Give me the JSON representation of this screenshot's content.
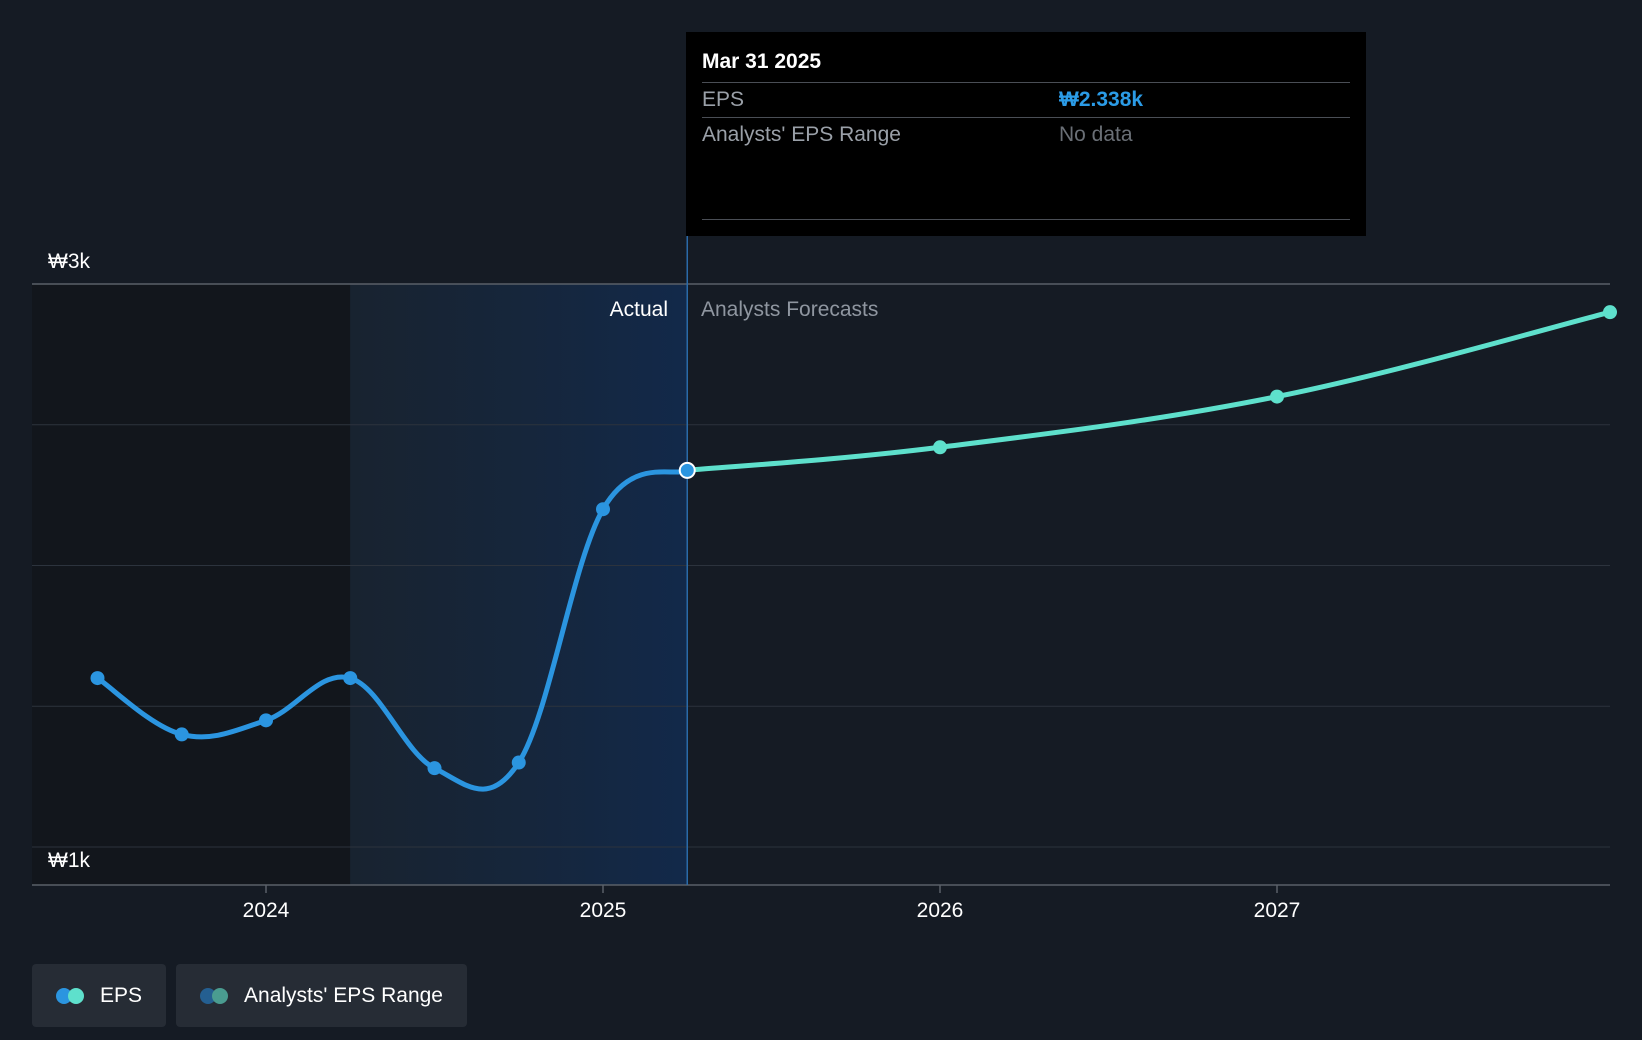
{
  "chart_data": {
    "type": "line",
    "currency_symbol": "₩",
    "y_ticks": [
      {
        "value": 3000,
        "label": "₩3k"
      },
      {
        "value": 1000,
        "label": "₩1k"
      }
    ],
    "ylim": [
      1000,
      3000
    ],
    "x_ticks": [
      {
        "value": 2024.0,
        "label": "2024"
      },
      {
        "value": 2025.0,
        "label": "2025"
      },
      {
        "value": 2026.0,
        "label": "2026"
      },
      {
        "value": 2027.0,
        "label": "2027"
      }
    ],
    "xlim": [
      2023.3,
      2028.0
    ],
    "actual_section_label": "Actual",
    "forecast_section_label": "Analysts Forecasts",
    "divider_date": 2025.25,
    "highlight_start": 2024.25,
    "series": [
      {
        "name": "EPS",
        "kind": "actual",
        "color": "#2b95e0",
        "points": [
          {
            "x": 2023.5,
            "y": 1600
          },
          {
            "x": 2023.75,
            "y": 1400
          },
          {
            "x": 2024.0,
            "y": 1450
          },
          {
            "x": 2024.25,
            "y": 1600
          },
          {
            "x": 2024.5,
            "y": 1280
          },
          {
            "x": 2024.75,
            "y": 1300
          },
          {
            "x": 2025.0,
            "y": 2200
          },
          {
            "x": 2025.25,
            "y": 2338
          }
        ]
      },
      {
        "name": "EPS",
        "kind": "forecast",
        "color": "#5ee0cc",
        "points": [
          {
            "x": 2025.25,
            "y": 2338
          },
          {
            "x": 2026.0,
            "y": 2420
          },
          {
            "x": 2027.0,
            "y": 2600
          },
          {
            "x": 2028.0,
            "y": 2900
          }
        ]
      }
    ]
  },
  "tooltip": {
    "date": "Mar 31 2025",
    "rows": [
      {
        "label": "EPS",
        "value": "₩2.338k"
      },
      {
        "label": "Analysts' EPS Range",
        "value": "No data"
      }
    ]
  },
  "legend": {
    "items": [
      {
        "label": "EPS",
        "colors": [
          "#2b95e0",
          "#5ee0cc"
        ]
      },
      {
        "label": "Analysts' EPS Range",
        "colors": [
          "#245f91",
          "#4a9c90"
        ]
      }
    ]
  }
}
